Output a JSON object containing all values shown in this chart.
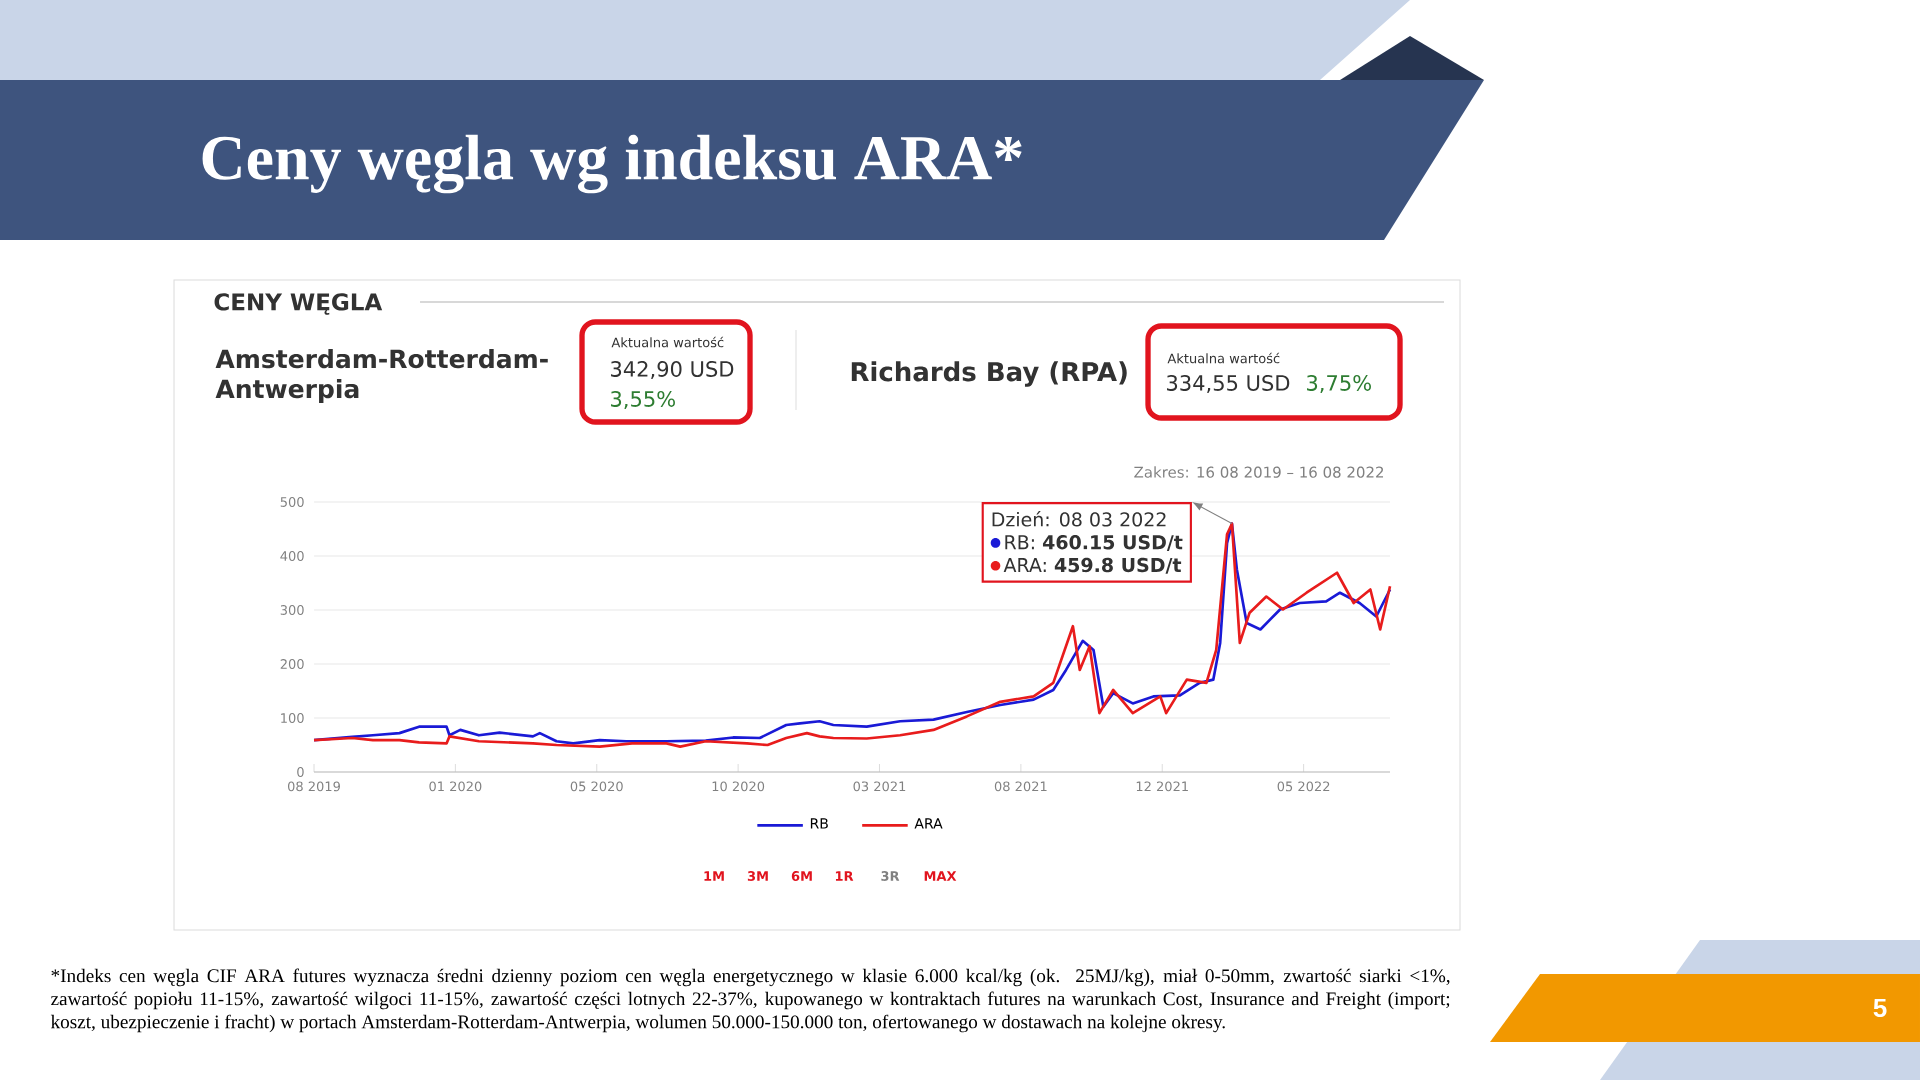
{
  "chart_data": {
    "type": "line",
    "title": "Ceny węgla wg indeksu ARA*",
    "subtitle": "CENY WĘGLA",
    "xlim": [
      "2019-08-16",
      "2022-08-16"
    ],
    "ylim": [
      0,
      500
    ],
    "xticks": [
      {
        "value": "2019-08-16",
        "label": "08 2019"
      },
      {
        "value": "2020-01-07",
        "label": "01 2020"
      },
      {
        "value": "2020-05-30",
        "label": "05 2020"
      },
      {
        "value": "2020-10-21",
        "label": "10 2020"
      },
      {
        "value": "2021-03-14",
        "label": "03 2021"
      },
      {
        "value": "2021-08-05",
        "label": "08 2021"
      },
      {
        "value": "2021-12-27",
        "label": "12 2021"
      },
      {
        "value": "2022-05-20",
        "label": "05 2022"
      }
    ],
    "yticks": [
      0,
      100,
      200,
      300,
      400,
      500
    ],
    "grid": "y",
    "legend": "bottom",
    "series": [
      {
        "name": "RB",
        "color": "#1a1ad6",
        "x": [
          "2019-08-16",
          "2019-09-24",
          "2019-10-15",
          "2019-11-11",
          "2019-12-01",
          "2019-12-29",
          "2020-01-01",
          "2020-01-12",
          "2020-01-31",
          "2020-02-21",
          "2020-03-26",
          "2020-04-02",
          "2020-04-19",
          "2020-05-06",
          "2020-06-02",
          "2020-06-29",
          "2020-08-09",
          "2020-09-18",
          "2020-10-16",
          "2020-11-12",
          "2020-12-09",
          "2020-12-23",
          "2021-01-12",
          "2021-01-26",
          "2021-03-01",
          "2021-04-04",
          "2021-05-08",
          "2021-06-11",
          "2021-07-15",
          "2021-08-18",
          "2021-09-07",
          "2021-09-20",
          "2021-10-07",
          "2021-10-18",
          "2021-10-28",
          "2021-11-07",
          "2021-11-27",
          "2021-12-18",
          "2022-01-14",
          "2022-02-03",
          "2022-02-17",
          "2022-02-24",
          "2022-03-03",
          "2022-03-08",
          "2022-03-13",
          "2022-03-23",
          "2022-04-06",
          "2022-04-26",
          "2022-05-16",
          "2022-06-12",
          "2022-06-26",
          "2022-07-16",
          "2022-08-02",
          "2022-08-16"
        ],
        "values": [
          59,
          65,
          68,
          72,
          84,
          84,
          68,
          78,
          68,
          73,
          66,
          72,
          57,
          53,
          59,
          57,
          57,
          58,
          64,
          63,
          87,
          90,
          94,
          87,
          84,
          94,
          97,
          111,
          124,
          134,
          152,
          189,
          243,
          226,
          121,
          146,
          127,
          140,
          142,
          165,
          171,
          239,
          424,
          460.15,
          375,
          276,
          264,
          301,
          313,
          316,
          332,
          313,
          288,
          338
        ]
      },
      {
        "name": "ARA",
        "color": "#e81c1c",
        "x": [
          "2019-08-16",
          "2019-09-24",
          "2019-10-15",
          "2019-11-11",
          "2019-12-01",
          "2019-12-29",
          "2020-01-01",
          "2020-01-31",
          "2020-03-26",
          "2020-04-19",
          "2020-06-02",
          "2020-07-05",
          "2020-08-09",
          "2020-08-23",
          "2020-09-18",
          "2020-10-30",
          "2020-11-20",
          "2020-12-09",
          "2020-12-30",
          "2021-01-12",
          "2021-01-26",
          "2021-03-01",
          "2021-04-04",
          "2021-05-08",
          "2021-06-11",
          "2021-07-15",
          "2021-08-18",
          "2021-09-07",
          "2021-09-27",
          "2021-10-04",
          "2021-10-14",
          "2021-10-24",
          "2021-11-07",
          "2021-11-27",
          "2021-12-25",
          "2021-12-31",
          "2022-01-21",
          "2022-02-10",
          "2022-02-20",
          "2022-03-03",
          "2022-03-08",
          "2022-03-16",
          "2022-03-26",
          "2022-04-12",
          "2022-04-29",
          "2022-05-23",
          "2022-06-23",
          "2022-07-10",
          "2022-07-27",
          "2022-08-06",
          "2022-08-16"
        ],
        "values": [
          59,
          63,
          59,
          59,
          55,
          53,
          66,
          57,
          53,
          50,
          47,
          53,
          53,
          47,
          57,
          53,
          50,
          63,
          72,
          66,
          63,
          62,
          68,
          78,
          103,
          130,
          140,
          165,
          270,
          189,
          233,
          109,
          152,
          109,
          140,
          109,
          171,
          165,
          226,
          440,
          459.8,
          239,
          295,
          325,
          301,
          332,
          369,
          313,
          338,
          264,
          344
        ]
      }
    ],
    "annotations": [
      "Amsterdam-Rotterdam-Antwerpia",
      "Aktualna wartość",
      "342,90 USD",
      "3,55%",
      "Richards Bay (RPA)",
      "Aktualna wartość",
      "334,55 USD",
      "3,75%",
      "Zakres: 16 08 2019 – 16 08 2022",
      "Dzień: 08 03 2022",
      "RB: **460.15 USD/t**",
      "ARA: **459.8 USD/t**",
      "1M",
      "3M",
      "6M",
      "1R",
      "3R",
      "MAX",
      "*Indeks cen węgla CIF ARA futures wyznacza średni dzienny poziom cen węgla energetycznego w klasie 6.000 kcal/kg (ok. 25MJ/kg), miał 0-50mm, zwartość siarki <1%, zawartość popiołu 11-15%, zawartość wilgoci 11-15%, zawartość części lotnych 22-37%, kupowanego w kontraktach futures na warunkach Cost, Insurance and Freight (import; koszt, ubezpieczenie i fracht) w portach Amsterdam-Rotterdam-Antwerpia, wolumen 50.000-150.000 ton, ofertowanego w dostawach na kolejne okresy.",
      "5"
    ]
  }
}
